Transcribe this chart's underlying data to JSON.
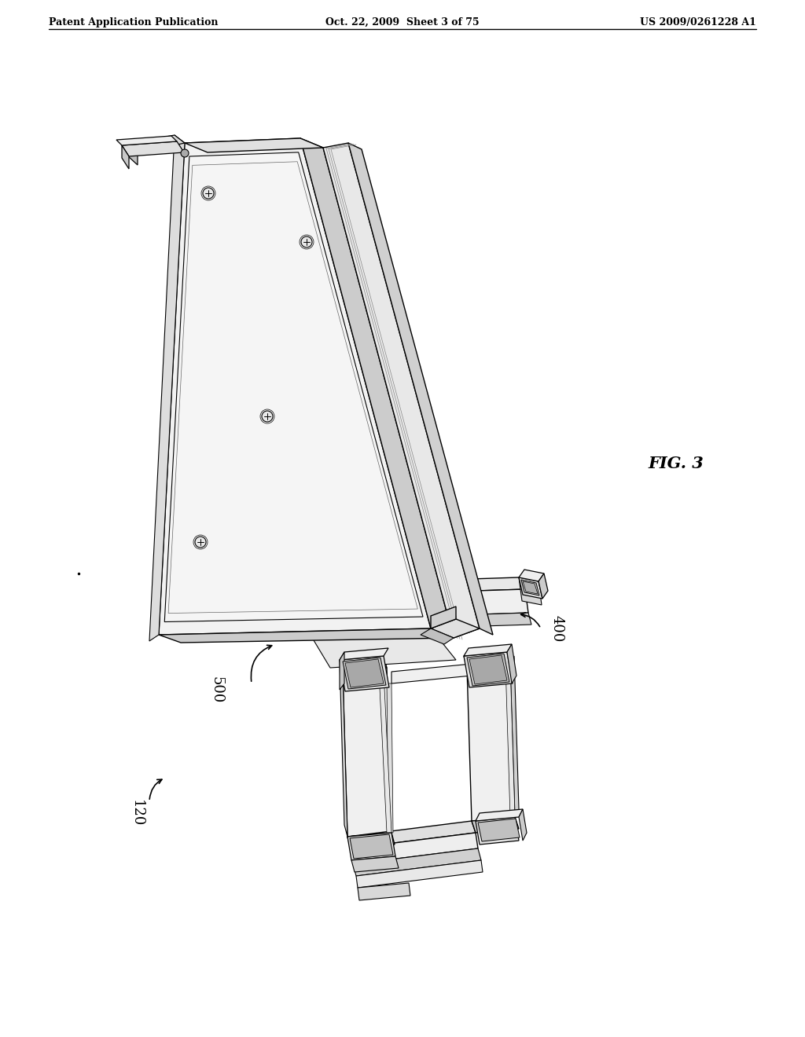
{
  "bg_color": "#ffffff",
  "header_left": "Patent Application Publication",
  "header_center": "Oct. 22, 2009  Sheet 3 of 75",
  "header_right": "US 2009/0261228 A1",
  "fig_label": "FIG. 3",
  "label_500": "500",
  "label_400": "400",
  "label_120": "120",
  "lc": "#000000",
  "fill_white": "#ffffff",
  "fill_light": "#f0f0f0",
  "fill_med": "#d8d8d8",
  "fill_dark": "#aaaaaa",
  "fill_vdark": "#888888"
}
